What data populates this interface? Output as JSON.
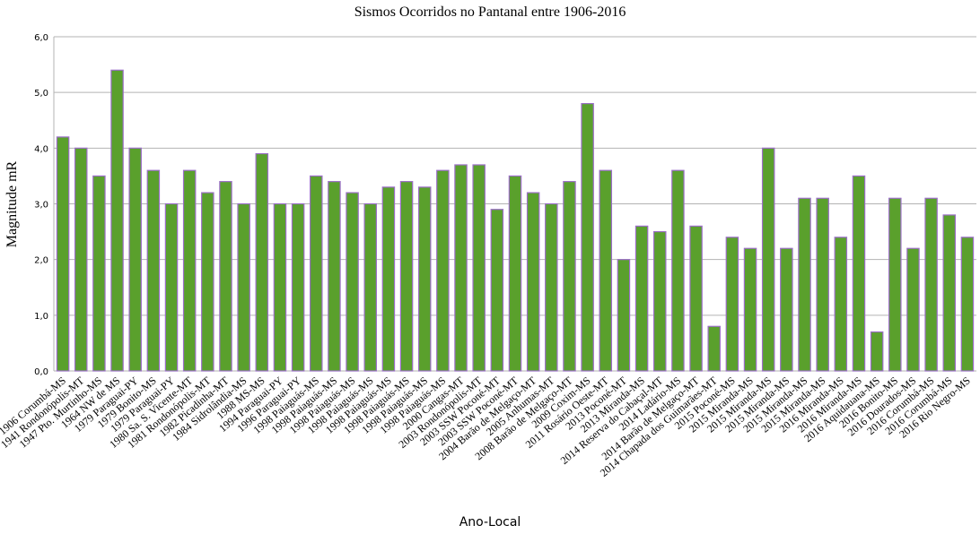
{
  "chart_data": {
    "type": "bar",
    "title": "Sismos Ocorridos no Pantanal entre 1906-2016",
    "x_label": "Ano-Local",
    "y_label": "Magnitude mR",
    "categories": [
      "1906 Corumbá-MS",
      "1941 Rondonópolis-MT",
      "1947 Pto. Murtinho-MS",
      "1964 NW de MS",
      "1979 Paraguai-PY",
      "1979 Bonito-MS",
      "1979 Paraguai-PY",
      "1980 Sa. S. Vicente-MT",
      "1981 Rondonópolis-MT",
      "1982 Picadinha-MT",
      "1984 Sidrolândia-MS",
      "1988 MS-MS",
      "1994 Paraguai-PY",
      "1996 Paraguai-PY",
      "1998 Paiaguás-MS",
      "1998 Paiaguás-MS",
      "1998 Paiaguás-MS",
      "1998 Paiaguás-MS",
      "1998 Paiaguás-MS",
      "1998 Paiaguás-MS",
      "1998 Paiaguás-MS",
      "1998 Paiaguás-MS",
      "2000 Cangas-MT",
      "2003 Rondonópolis-MT",
      "2003 SSW Poconé-MT",
      "2003 SSW Poconé-MT",
      "2004 Barão de Melgaço-MT",
      "2005 Anhumas-MT",
      "2008 Barão de Melgaço-MT",
      "2009 Coxim-MS",
      "2011 Rosário Oeste-MT",
      "2013 Poconé-MT",
      "2013 Miranda-MS",
      "2014 Reserva do Cabaçal-MT",
      "2014 Ladário-MS",
      "2014 Barão de Melgaço-MT",
      "2014 Chapada dos Guimarães-MT",
      "2015 Poconé-MS",
      "2015 Miranda-MS",
      "2015 Miranda-MS",
      "2015 Miranda-MS",
      "2015 Miranda-MS",
      "2015 Miranda-MS",
      "2016 Miranda-MS",
      "2016 Miranda-MS",
      "2016 Aquidauana-MS",
      "2016 Bonito-MS",
      "2016 Dourados-MS",
      "2016 Corumbá-MS",
      "2016 Corumbá-MS",
      "2016 Rio Negro-MS"
    ],
    "values": [
      4.2,
      4.0,
      3.5,
      5.4,
      4.0,
      3.6,
      3.0,
      3.6,
      3.2,
      3.4,
      3.0,
      3.9,
      3.0,
      3.0,
      3.5,
      3.4,
      3.2,
      3.0,
      3.3,
      3.4,
      3.3,
      3.6,
      3.7,
      3.7,
      2.9,
      3.5,
      3.2,
      3.0,
      3.4,
      4.8,
      3.6,
      2.0,
      2.6,
      2.5,
      3.6,
      2.6,
      0.8,
      2.4,
      2.2,
      4.0,
      2.2,
      3.1,
      3.1,
      2.4,
      3.5,
      0.7,
      3.1,
      2.2,
      3.1,
      2.8,
      2.4
    ],
    "color": "#5aa02c",
    "edge_color": "#9b6fc7",
    "ylim": [
      0,
      6
    ],
    "yticks": [
      {
        "value": 0,
        "label": "0,0"
      },
      {
        "value": 1,
        "label": "1,0"
      },
      {
        "value": 2,
        "label": "2,0"
      },
      {
        "value": 3,
        "label": "3,0"
      },
      {
        "value": 4,
        "label": "4,0"
      },
      {
        "value": 5,
        "label": "5,0"
      },
      {
        "value": 6,
        "label": "6,0"
      }
    ],
    "grid": true
  }
}
